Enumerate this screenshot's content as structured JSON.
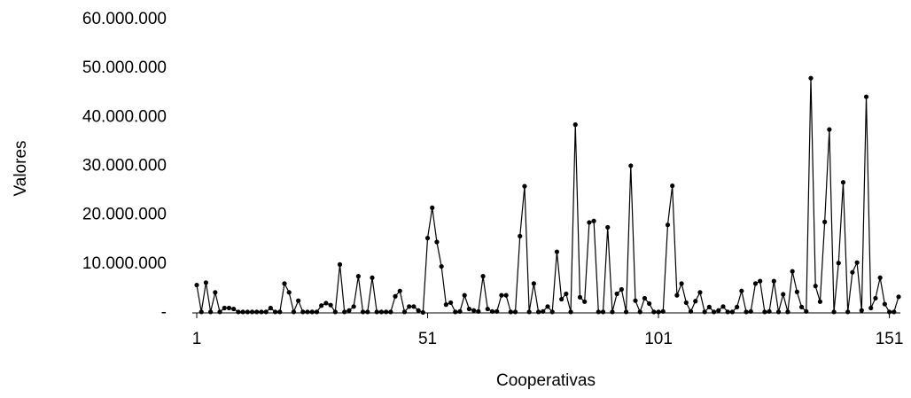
{
  "chart_data": {
    "type": "line",
    "xlabel": "Cooperativas",
    "ylabel": "Valores",
    "x": [
      1,
      2,
      3,
      4,
      5,
      6,
      7,
      8,
      9,
      10,
      11,
      12,
      13,
      14,
      15,
      16,
      17,
      18,
      19,
      20,
      21,
      22,
      23,
      24,
      25,
      26,
      27,
      28,
      29,
      30,
      31,
      32,
      33,
      34,
      35,
      36,
      37,
      38,
      39,
      40,
      41,
      42,
      43,
      44,
      45,
      46,
      47,
      48,
      49,
      50,
      51,
      52,
      53,
      54,
      55,
      56,
      57,
      58,
      59,
      60,
      61,
      62,
      63,
      64,
      65,
      66,
      67,
      68,
      69,
      70,
      71,
      72,
      73,
      74,
      75,
      76,
      77,
      78,
      79,
      80,
      81,
      82,
      83,
      84,
      85,
      86,
      87,
      88,
      89,
      90,
      91,
      92,
      93,
      94,
      95,
      96,
      97,
      98,
      99,
      100,
      101,
      102,
      103,
      104,
      105,
      106,
      107,
      108,
      109,
      110,
      111,
      112,
      113,
      114,
      115,
      116,
      117,
      118,
      119,
      120,
      121,
      122,
      123,
      124,
      125,
      126,
      127,
      128,
      129,
      130,
      131,
      132,
      133,
      134,
      135,
      136,
      137,
      138,
      139,
      140,
      141,
      142,
      143,
      144,
      145,
      146,
      147,
      148,
      149,
      150,
      151,
      152,
      153
    ],
    "series": [
      {
        "name": "Valores",
        "color": "#000000",
        "values": [
          5700000,
          200000,
          6200000,
          200000,
          4200000,
          200000,
          1000000,
          1000000,
          800000,
          200000,
          200000,
          200000,
          200000,
          200000,
          200000,
          200000,
          1000000,
          200000,
          200000,
          6000000,
          4200000,
          200000,
          2500000,
          200000,
          200000,
          200000,
          200000,
          1500000,
          2000000,
          1600000,
          200000,
          9900000,
          200000,
          500000,
          1300000,
          7500000,
          200000,
          200000,
          7200000,
          200000,
          200000,
          200000,
          200000,
          3400000,
          4500000,
          200000,
          1300000,
          1300000,
          500000,
          100000,
          15300000,
          21500000,
          14500000,
          9500000,
          1700000,
          2100000,
          200000,
          300000,
          3600000,
          800000,
          500000,
          300000,
          7500000,
          800000,
          300000,
          300000,
          3600000,
          3600000,
          200000,
          200000,
          15700000,
          25900000,
          200000,
          6000000,
          200000,
          300000,
          1300000,
          200000,
          12500000,
          2800000,
          3900000,
          200000,
          38500000,
          3200000,
          2300000,
          18500000,
          18800000,
          200000,
          200000,
          17500000,
          200000,
          3900000,
          4800000,
          200000,
          30100000,
          2500000,
          200000,
          3000000,
          1900000,
          200000,
          200000,
          300000,
          18000000,
          26000000,
          3600000,
          6000000,
          2100000,
          300000,
          2400000,
          4200000,
          200000,
          1200000,
          200000,
          500000,
          1300000,
          200000,
          200000,
          1200000,
          4500000,
          200000,
          300000,
          6000000,
          6500000,
          200000,
          300000,
          6500000,
          200000,
          3800000,
          200000,
          8500000,
          4300000,
          1200000,
          300000,
          48000000,
          5500000,
          2300000,
          18600000,
          37500000,
          200000,
          10200000,
          26700000,
          200000,
          8300000,
          10300000,
          500000,
          44200000,
          1000000,
          3000000,
          7200000,
          1800000,
          200000,
          200000,
          3300000
        ]
      }
    ],
    "xlim": [
      1,
      153
    ],
    "xticks": [
      1,
      51,
      101,
      151
    ],
    "ylim": [
      0,
      60000000
    ],
    "yticks": [
      {
        "value": 0,
        "label": "-"
      },
      {
        "value": 10000000,
        "label": "10.000.000"
      },
      {
        "value": 20000000,
        "label": "20.000.000"
      },
      {
        "value": 30000000,
        "label": "30.000.000"
      },
      {
        "value": 40000000,
        "label": "40.000.000"
      },
      {
        "value": 50000000,
        "label": "50.000.000"
      },
      {
        "value": 60000000,
        "label": "60.000.000"
      }
    ]
  }
}
